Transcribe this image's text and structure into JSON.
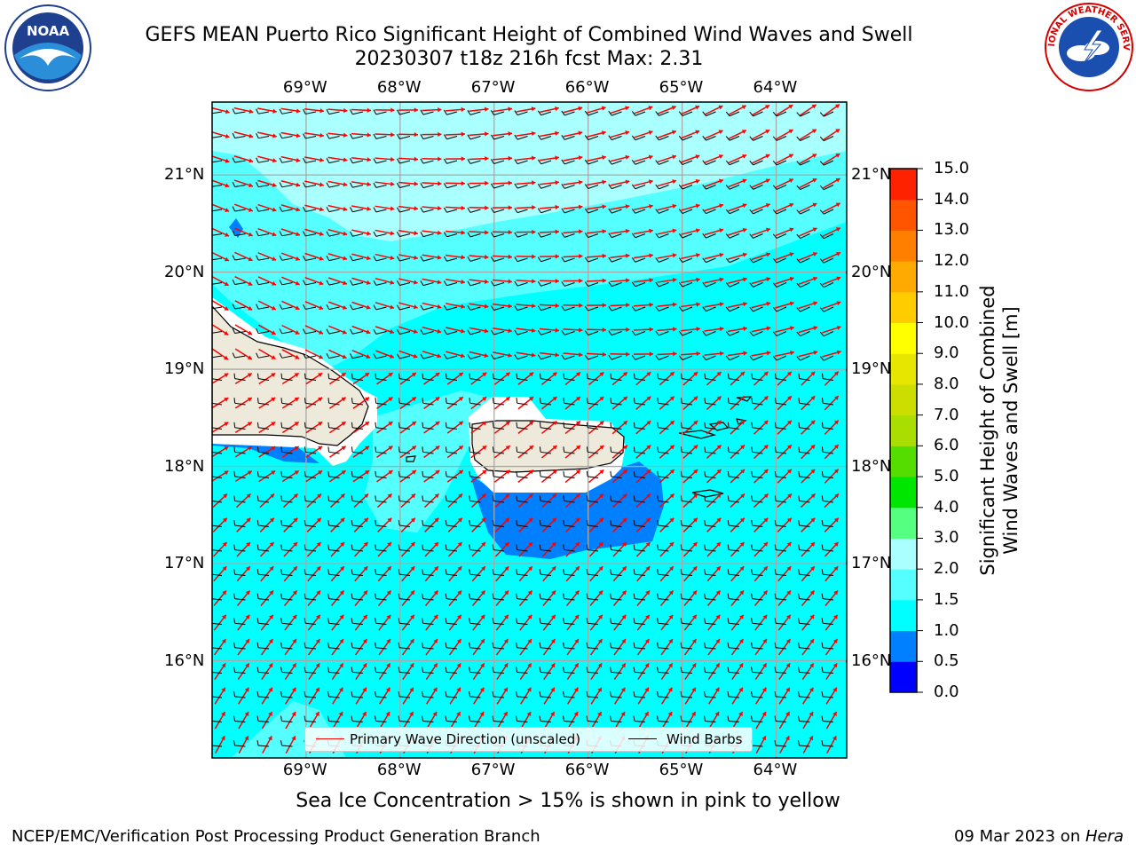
{
  "header": {
    "title_line1": "GEFS MEAN Puerto Rico Significant Height of Combined Wind Waves and Swell",
    "title_line2": "20230307 t18z 216h fcst   Max: 2.31"
  },
  "logos": {
    "left": {
      "name": "noaa-logo",
      "text": "NOAA"
    },
    "right": {
      "name": "nws-logo",
      "text": "NATIONAL WEATHER SERVICE"
    }
  },
  "map": {
    "type": "filled-contour-map",
    "region": "Puerto Rico",
    "lon_range": [
      -70.0,
      -63.25
    ],
    "lat_range": [
      15.0,
      21.75
    ],
    "lon_ticks": [
      "69°W",
      "68°W",
      "67°W",
      "66°W",
      "65°W",
      "64°W"
    ],
    "lat_ticks": [
      "21°N",
      "20°N",
      "19°N",
      "18°N",
      "17°N",
      "16°N"
    ],
    "grid": true,
    "max_value": 2.31,
    "colors": {
      "land": "#eeeadb",
      "c_0_5_1_0": "#0080ff",
      "c_1_0_1_5": "#00ffff",
      "c_1_5_2_0": "#55ffff",
      "c_2_0_3_0": "#aaffff",
      "wave_arrow": "#ff0000",
      "wind_barb": "#000000"
    }
  },
  "colorbar": {
    "title_line1": "Significant Height of Combined",
    "title_line2": "Wind Waves and Swell [m]",
    "ticks": [
      "0.0",
      "0.5",
      "1.0",
      "1.5",
      "2.0",
      "3.0",
      "4.0",
      "5.0",
      "6.0",
      "7.0",
      "8.0",
      "9.0",
      "10.0",
      "11.0",
      "12.0",
      "13.0",
      "14.0",
      "15.0"
    ],
    "colors": [
      "#0000ff",
      "#0080ff",
      "#00ffff",
      "#55ffff",
      "#aaffff",
      "#55ff80",
      "#00e600",
      "#55dd00",
      "#aadd00",
      "#ccdd00",
      "#e6e600",
      "#ffff00",
      "#ffcc00",
      "#ffaa00",
      "#ff8000",
      "#ff5500",
      "#ff2200"
    ]
  },
  "legend": {
    "wave_label": "Primary Wave Direction (unscaled)",
    "wind_label": "Wind Barbs",
    "wave_color": "#ff0000",
    "wind_color": "#000000"
  },
  "footer": {
    "note": "Sea Ice Concentration > 15% is shown in pink to yellow",
    "credit_left": "NCEP/EMC/Verification Post Processing Product Generation Branch",
    "credit_date": "09 Mar 2023 on ",
    "credit_host": "Hera"
  }
}
